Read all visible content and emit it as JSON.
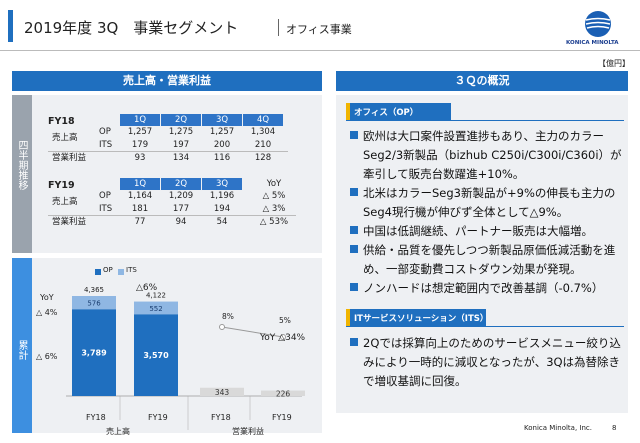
{
  "header": {
    "title": "2019年度 3Q　事業セグメント",
    "subtitle": "オフィス事業",
    "logo_text": "KONICA MINOLTA",
    "unit": "【億円】"
  },
  "left_banner": "売上高・営業利益",
  "right_banner": "３Ｑの概況",
  "side_labels": {
    "quarterly": "四半期推移",
    "cumulative": "累計"
  },
  "quarters": [
    "1Q",
    "2Q",
    "3Q",
    "4Q"
  ],
  "fy18": {
    "label": "FY18",
    "rows": [
      {
        "label": "売上高",
        "sub": "OP",
        "values": [
          "1,257",
          "1,275",
          "1,257",
          "1,304"
        ]
      },
      {
        "label": "",
        "sub": "ITS",
        "values": [
          "179",
          "197",
          "200",
          "210"
        ]
      },
      {
        "label": "営業利益",
        "sub": "",
        "values": [
          "93",
          "134",
          "116",
          "128"
        ]
      }
    ]
  },
  "fy19": {
    "label": "FY19",
    "yoy_header": "YoY",
    "rows": [
      {
        "label": "売上高",
        "sub": "OP",
        "values": [
          "1,164",
          "1,209",
          "1,196"
        ],
        "yoy": "△ 5%"
      },
      {
        "label": "",
        "sub": "ITS",
        "values": [
          "181",
          "177",
          "194"
        ],
        "yoy": "△ 3%"
      },
      {
        "label": "営業利益",
        "sub": "",
        "values": [
          "77",
          "94",
          "54"
        ],
        "yoy": "△ 53%"
      }
    ]
  },
  "chart_data": [
    {
      "type": "bar",
      "title": "売上高",
      "categories": [
        "FY18",
        "FY19"
      ],
      "series": [
        {
          "name": "OP",
          "values": [
            3789,
            3570
          ]
        },
        {
          "name": "ITS",
          "values": [
            576,
            552
          ]
        }
      ],
      "totals": [
        4365,
        4122
      ],
      "yoy_total": "△6%",
      "yoy_labels": {
        "header": "YoY",
        "its": "△ 4%",
        "op": "△ 6%"
      }
    },
    {
      "type": "bar",
      "title": "営業利益",
      "categories": [
        "FY18",
        "FY19"
      ],
      "values": [
        343,
        226
      ],
      "margins": [
        "8%",
        "5%"
      ],
      "yoy": "YoY △34%"
    }
  ],
  "office": {
    "title": "オフィス（OP）",
    "bullets": [
      "欧州は大口案件設置進捗もあり、主力のカラーSeg2/3新製品（bizhub C250i/C300i/C360i）が牽引して販売台数躍進+10%。",
      "北米はカラーSeg3新製品が+9%の伸長も主力のSeg4現行機が伸びず全体として△9%。",
      "中国は低調継続、パートナー販売は大幅増。",
      "供給・品質を優先しつつ新製品原価低減活動を進め、一部変動費コストダウン効果が発現。",
      "ノンハードは想定範囲内で改善基調（-0.7%）"
    ]
  },
  "its": {
    "title": "ITサービスソリューション（ITS）",
    "bullets": [
      "2Qでは採算向上のためのサービスメニュー絞り込みにより一時的に減収となったが、3Qは為替除きで増収基調に回復。"
    ]
  },
  "footer": {
    "company": "Konica Minolta, Inc.",
    "page": "8"
  }
}
